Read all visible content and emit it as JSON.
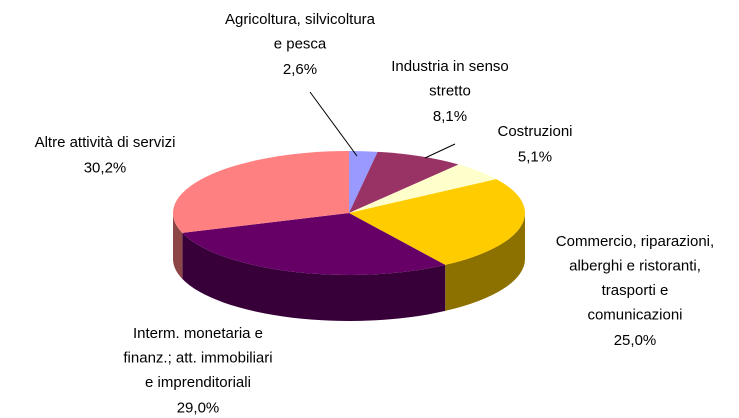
{
  "chart_data": {
    "type": "pie",
    "categories": [
      [
        "Agricoltura, silvicoltura",
        "e pesca"
      ],
      [
        "Industria in senso",
        "stretto"
      ],
      [
        "Costruzioni"
      ],
      [
        "Commercio, riparazioni,",
        "alberghi e ristoranti,",
        "trasporti e",
        "comunicazioni"
      ],
      [
        "Interm. monetaria e",
        "finanz.; att. immobiliari",
        "e imprenditoriali"
      ],
      [
        "Altre attività di servizi"
      ]
    ],
    "values": [
      2.6,
      8.1,
      5.1,
      25.0,
      29.0,
      30.2
    ],
    "value_labels": [
      "2,6%",
      "8,1%",
      "5,1%",
      "25,0%",
      "29,0%",
      "30,2%"
    ],
    "colors": [
      "#9999ff",
      "#993366",
      "#ffffcc",
      "#ffcc00",
      "#660066",
      "#ff8080"
    ]
  }
}
